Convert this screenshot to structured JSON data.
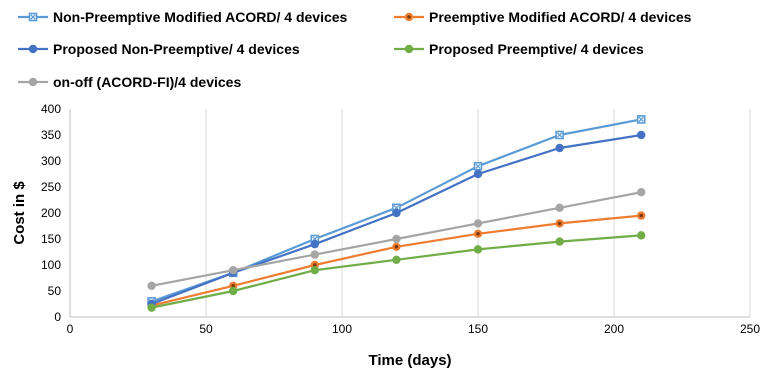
{
  "chart_data": {
    "type": "line",
    "xlabel": "Time (days)",
    "ylabel": "Cost in $",
    "xlim": [
      0,
      250
    ],
    "ylim": [
      0,
      400
    ],
    "xticks": [
      0,
      50,
      100,
      150,
      200,
      250
    ],
    "yticks": [
      0,
      50,
      100,
      150,
      200,
      250,
      300,
      350,
      400
    ],
    "grid": "vertical",
    "legend_position": "top",
    "x": [
      30,
      60,
      90,
      120,
      150,
      180,
      210
    ],
    "series": [
      {
        "name": "Non-Preemptive Modified ACORD/ 4 devices",
        "values": [
          30,
          85,
          150,
          210,
          290,
          350,
          380
        ],
        "color": "#5b9bd5",
        "marker": "square-x"
      },
      {
        "name": "Preemptive Modified ACORD/ 4 devices",
        "values": [
          22,
          60,
          100,
          135,
          160,
          180,
          195
        ],
        "color": "#ed7d31",
        "marker": "circle-dot"
      },
      {
        "name": "Proposed Non-Preemptive/ 4 devices",
        "values": [
          25,
          85,
          140,
          200,
          275,
          325,
          350
        ],
        "color": "#4472c4",
        "marker": "circle"
      },
      {
        "name": "Proposed Preemptive/ 4 devices",
        "values": [
          18,
          50,
          90,
          110,
          130,
          145,
          157
        ],
        "color": "#70ad47",
        "marker": "circle"
      },
      {
        "name": "on-off (ACORD-FI)/4 devices",
        "values": [
          60,
          90,
          120,
          150,
          180,
          210,
          240
        ],
        "color": "#a5a5a5",
        "marker": "circle"
      }
    ]
  }
}
